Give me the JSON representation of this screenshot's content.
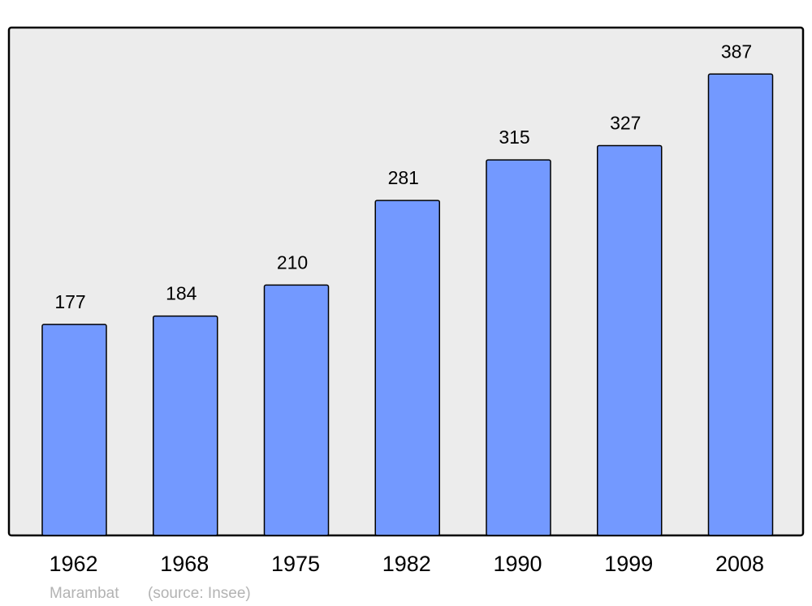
{
  "chart_data": {
    "type": "bar",
    "categories": [
      "1962",
      "1968",
      "1975",
      "1982",
      "1990",
      "1999",
      "2008"
    ],
    "values": [
      177,
      184,
      210,
      281,
      315,
      327,
      387
    ],
    "title": "",
    "xlabel": "",
    "ylabel": "",
    "ylim": [
      0,
      426
    ],
    "grid": false,
    "data_labels": true,
    "credit": "Marambat",
    "source": "(source: Insee)",
    "colors": {
      "bar": "#7399ff",
      "plot_background": "#ececec",
      "frame": "#000000",
      "credit_text": "#b3b3b3"
    }
  }
}
